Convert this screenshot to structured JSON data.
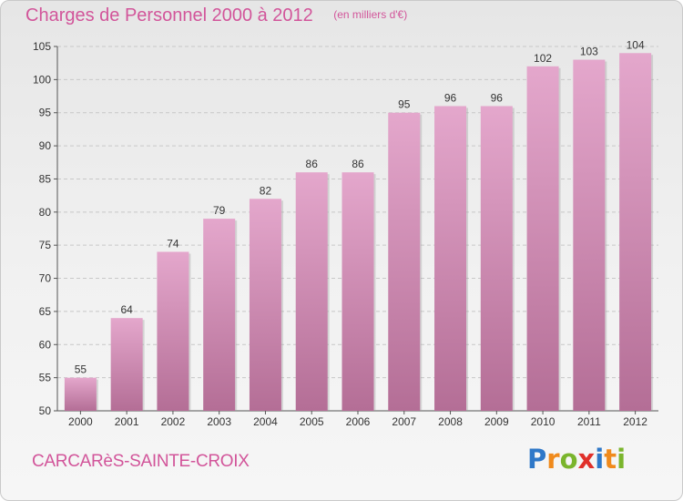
{
  "header": {
    "title": "Charges de Personnel 2000 à 2012",
    "unit": "(en milliers d'€)"
  },
  "footer": {
    "commune": "CARCARèS-SAINTE-CROIX",
    "logo": {
      "letters": [
        "P",
        "r",
        "o",
        "x",
        "i",
        "t",
        "i"
      ],
      "colors": [
        "#2f78c8",
        "#f08a1c",
        "#7ab52c",
        "#e0302a",
        "#2f78c8",
        "#f08a1c",
        "#7ab52c"
      ]
    }
  },
  "chart_data": {
    "type": "bar",
    "title": "Charges de Personnel 2000 à 2012",
    "subtitle": "(en milliers d'€)",
    "xlabel": "",
    "ylabel": "",
    "categories": [
      "2000",
      "2001",
      "2002",
      "2003",
      "2004",
      "2005",
      "2006",
      "2007",
      "2008",
      "2009",
      "2010",
      "2011",
      "2012"
    ],
    "values": [
      55,
      64,
      74,
      79,
      82,
      86,
      86,
      95,
      96,
      96,
      102,
      103,
      104
    ],
    "ylim": [
      50,
      105
    ],
    "yticks": [
      50,
      55,
      60,
      65,
      70,
      75,
      80,
      85,
      90,
      95,
      100,
      105
    ],
    "grid": true,
    "bar_color_top": "#e4a7cc",
    "bar_color_bottom": "#b46e96",
    "text_color": "#d2559a"
  }
}
